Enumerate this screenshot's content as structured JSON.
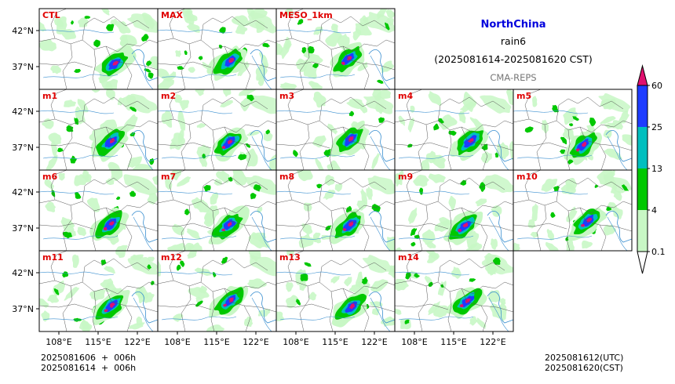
{
  "info": {
    "region": "NorthChina",
    "variable": "rain6",
    "period": "(2025081614-2025081620 CST)",
    "system": "CMA-REPS"
  },
  "panels": [
    [
      "CTL",
      "MAX",
      "MESO_1km"
    ],
    [
      "m1",
      "m2",
      "m3",
      "m4",
      "m5"
    ],
    [
      "m6",
      "m7",
      "m8",
      "m9",
      "m10"
    ],
    [
      "m11",
      "m12",
      "m13",
      "m14"
    ]
  ],
  "lat_ticks": [
    "42°N",
    "37°N"
  ],
  "lon_ticks": [
    "108°E",
    "115°E",
    "122°E"
  ],
  "colorbar": {
    "levels": [
      "0.1",
      "4",
      "13",
      "25",
      "60"
    ],
    "colors": [
      "#c8f7c5",
      "#00c800",
      "#00bfbf",
      "#1e3cff",
      "#e0106e"
    ]
  },
  "footer": {
    "init_line1": "2025081606  +  006h",
    "init_line2": "2025081614  +  006h",
    "valid_utc": "2025081612(UTC)",
    "valid_cst": "2025081620(CST)"
  },
  "palette": {
    "light_green": "#c8f7c5",
    "green": "#00c800",
    "dark_green": "#00a000",
    "cyan": "#00bfbf",
    "blue": "#1e3cff",
    "magenta": "#e0106e",
    "river": "#3a8fd0",
    "border": "#555555"
  }
}
